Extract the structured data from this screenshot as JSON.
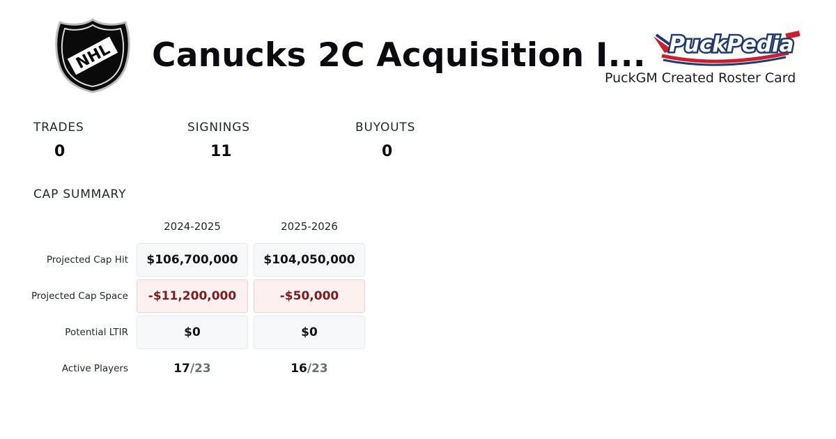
{
  "header": {
    "title": "Canucks 2C Acquisition I...",
    "league_logo_text": "NHL",
    "brand_logo_text": "PuckPedia",
    "brand_caption": "PuckGM Created Roster Card"
  },
  "stats": [
    {
      "label": "TRADES",
      "value": "0"
    },
    {
      "label": "SIGNINGS",
      "value": "11"
    },
    {
      "label": "BUYOUTS",
      "value": "0"
    }
  ],
  "cap_summary": {
    "title": "CAP SUMMARY",
    "seasons": [
      "2024-2025",
      "2025-2026"
    ],
    "rows": [
      {
        "label": "Projected Cap Hit",
        "values": [
          "$106,700,000",
          "$104,050,000"
        ],
        "tone": "neutral"
      },
      {
        "label": "Projected Cap Space",
        "values": [
          "-$11,200,000",
          "-$50,000"
        ],
        "tone": "negative"
      },
      {
        "label": "Potential LTIR",
        "values": [
          "$0",
          "$0"
        ],
        "tone": "neutral"
      },
      {
        "label": "Active Players",
        "values": [
          {
            "count": "17",
            "max": "/23"
          },
          {
            "count": "16",
            "max": "/23"
          }
        ],
        "tone": "plain"
      }
    ]
  },
  "colors": {
    "negative_text": "#7d1c1c",
    "negative_bg": "#fdf0f0",
    "neutral_bg": "#f7f8fa",
    "brand_navy": "#1f3a6b",
    "brand_red": "#c8202f"
  }
}
